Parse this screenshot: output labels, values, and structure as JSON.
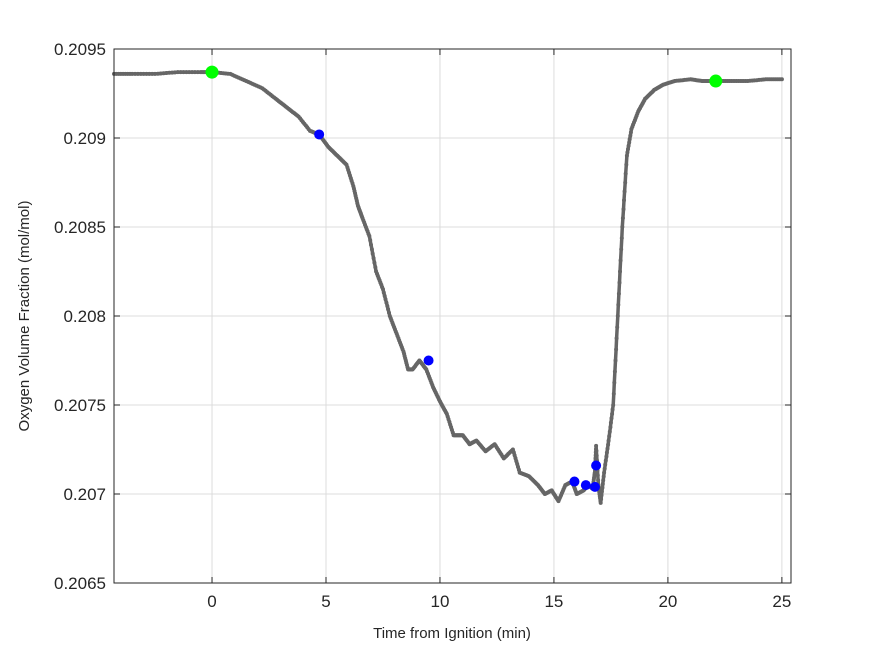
{
  "chart_data": {
    "type": "line",
    "title": "",
    "xlabel": "Time from Ignition (min)",
    "ylabel": "Oxygen Volume Fraction (mol/mol)",
    "xlim": [
      -4.3,
      25.4
    ],
    "ylim": [
      0.2065,
      0.2095
    ],
    "grid": true,
    "legend": null,
    "x_ticks": [
      0,
      5,
      10,
      15,
      20,
      25
    ],
    "x_tick_labels": [
      "0",
      "5",
      "10",
      "15",
      "20",
      "25"
    ],
    "y_ticks": [
      0.2065,
      0.207,
      0.2075,
      0.208,
      0.2085,
      0.209,
      0.2095
    ],
    "y_tick_labels": [
      "0.2065",
      "0.207",
      "0.2075",
      "0.208",
      "0.2085",
      "0.209",
      "0.2095"
    ],
    "series": [
      {
        "name": "O2 measurement",
        "color": "#666666",
        "marker": "dot",
        "x": [
          -4.3,
          -3.5,
          -2.5,
          -1.5,
          -0.5,
          0,
          0.8,
          1.5,
          2.2,
          2.8,
          3.3,
          3.8,
          4.3,
          4.7,
          5.1,
          5.5,
          5.9,
          6.2,
          6.4,
          6.6,
          6.9,
          7.2,
          7.5,
          7.8,
          8.1,
          8.4,
          8.6,
          8.8,
          9.1,
          9.4,
          9.7,
          10.0,
          10.3,
          10.6,
          10.8,
          11.0,
          11.3,
          11.6,
          12.0,
          12.4,
          12.8,
          13.2,
          13.5,
          13.9,
          14.3,
          14.6,
          14.9,
          15.2,
          15.5,
          15.8,
          16.0,
          16.3,
          16.5,
          16.7,
          16.8,
          16.85,
          16.95,
          17.05,
          17.2,
          17.4,
          17.6,
          17.8,
          18.0,
          18.2,
          18.4,
          18.7,
          19.0,
          19.4,
          19.8,
          20.3,
          21.0,
          21.5,
          22.0,
          22.7,
          23.5,
          24.3,
          25.0
        ],
        "y": [
          0.20936,
          0.20936,
          0.20936,
          0.20937,
          0.20937,
          0.20937,
          0.20936,
          0.20932,
          0.20928,
          0.20922,
          0.20917,
          0.20912,
          0.20904,
          0.20902,
          0.20895,
          0.2089,
          0.20885,
          0.20873,
          0.20862,
          0.20855,
          0.20845,
          0.20825,
          0.20815,
          0.208,
          0.2079,
          0.2078,
          0.2077,
          0.2077,
          0.20775,
          0.2077,
          0.2076,
          0.20752,
          0.20745,
          0.20733,
          0.20733,
          0.20733,
          0.20728,
          0.2073,
          0.20724,
          0.20728,
          0.2072,
          0.20725,
          0.20712,
          0.2071,
          0.20705,
          0.207,
          0.20702,
          0.20696,
          0.20705,
          0.20707,
          0.207,
          0.20702,
          0.20705,
          0.20703,
          0.20713,
          0.20727,
          0.20705,
          0.20695,
          0.20712,
          0.2073,
          0.2075,
          0.208,
          0.2085,
          0.2089,
          0.20905,
          0.20915,
          0.20922,
          0.20927,
          0.2093,
          0.20932,
          0.20933,
          0.20932,
          0.20932,
          0.20932,
          0.20932,
          0.20933,
          0.20933
        ]
      },
      {
        "name": "Blue markers",
        "color": "#0000ff",
        "marker": "circle",
        "x": [
          4.7,
          9.5,
          15.9,
          16.4,
          16.8,
          16.85
        ],
        "y": [
          0.20902,
          0.20775,
          0.20707,
          0.20705,
          0.20704,
          0.20716
        ]
      },
      {
        "name": "Green markers",
        "color": "#00ff00",
        "marker": "circle",
        "x": [
          0.0,
          22.1
        ],
        "y": [
          0.20937,
          0.20932
        ]
      }
    ]
  }
}
